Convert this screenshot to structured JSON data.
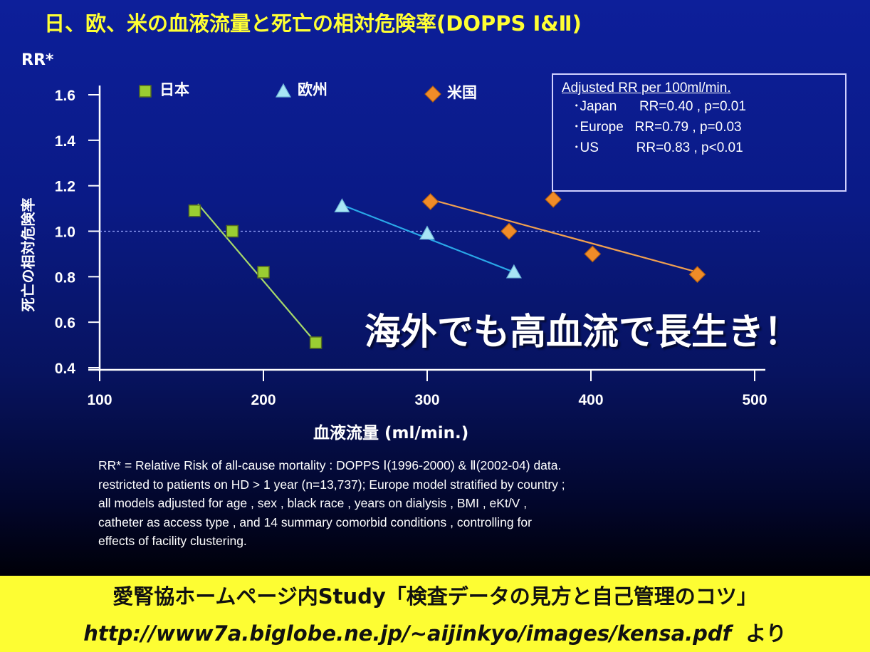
{
  "slide": {
    "title": "日、欧、米の血液流量と死亡の相対危険率(DOPPS Ⅰ&Ⅱ)",
    "y_top_label": "RR*",
    "y_axis_title": "死亡の相対危険率",
    "x_axis_title": "血液流量 (ml/min.)",
    "slogan": "海外でも高血流で長生き！",
    "infobox": {
      "header": "Adjusted RR per 100ml/min.",
      "rows": [
        "･Japan      RR=0.40 , p=0.01",
        "･Europe   RR=0.79 , p=0.03",
        "･US          RR=0.83 , p<0.01"
      ]
    },
    "footnote": [
      "RR* = Relative Risk of all-cause mortality : DOPPS Ⅰ(1996-2000) & Ⅱ(2002-04) data.",
      "restricted to patients on HD > 1 year (n=13,737); Europe model stratified by country ;",
      "all models adjusted for age , sex , black race , years on dialysis , BMI , eKt/V ,",
      "catheter as access type , and 14 summary comorbid conditions , controlling for",
      "effects of  facility  clustering."
    ]
  },
  "source": {
    "line1": "愛腎協ホームページ内Study「検査データの見方と自己管理のコツ」",
    "url": "http://www7a.biglobe.ne.jp/~aijinkyo/images/kensa.pdf",
    "suffix": "より"
  },
  "chart_data": {
    "type": "scatter",
    "xlim": [
      100,
      500
    ],
    "ylim": [
      0.4,
      1.6
    ],
    "x_ticks": [
      "100",
      "200",
      "300",
      "400",
      "500"
    ],
    "y_ticks": [
      "0.4",
      "0.6",
      "0.8",
      "1.0",
      "1.2",
      "1.4",
      "1.6"
    ],
    "reference_line_y": 1.0,
    "legend_placement": "top",
    "series": [
      {
        "name": "日本",
        "marker": "square",
        "color": "#9acd32",
        "line_color": "#a6d86a",
        "points": [
          [
            158,
            1.09
          ],
          [
            181,
            1.0
          ],
          [
            200,
            0.82
          ],
          [
            232,
            0.51
          ]
        ],
        "fit": [
          [
            160,
            1.12
          ],
          [
            232,
            0.51
          ]
        ]
      },
      {
        "name": "欧州",
        "marker": "triangle",
        "color": "#a8e6f5",
        "line_color": "#2aa8e8",
        "points": [
          [
            248,
            1.11
          ],
          [
            300,
            0.99
          ],
          [
            353,
            0.82
          ]
        ],
        "fit": [
          [
            250,
            1.11
          ],
          [
            353,
            0.82
          ]
        ]
      },
      {
        "name": "米国",
        "marker": "diamond",
        "color": "#f08c28",
        "line_color": "#f0a050",
        "points": [
          [
            302,
            1.13
          ],
          [
            350,
            1.0
          ],
          [
            377,
            1.14
          ],
          [
            401,
            0.9
          ],
          [
            465,
            0.81
          ]
        ],
        "fit": [
          [
            302,
            1.14
          ],
          [
            465,
            0.82
          ]
        ]
      }
    ]
  }
}
